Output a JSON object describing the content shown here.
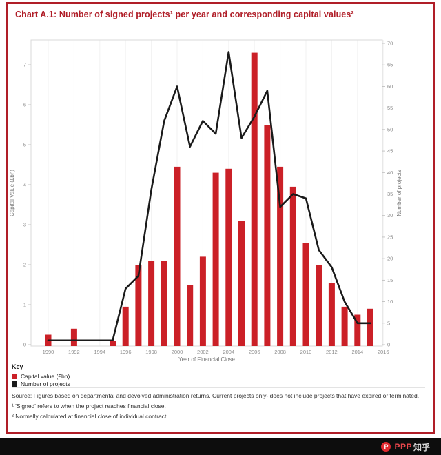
{
  "panel": {
    "title": "Chart A.1: Number of signed projects¹ per year and corresponding capital values²",
    "title_color": "#b01e28",
    "border_color": "#b01e28"
  },
  "key": {
    "heading": "Key",
    "items": [
      {
        "label": "Capital value (£bn)",
        "color": "#cb2027"
      },
      {
        "label": "Number of projects",
        "color": "#1a1a1a"
      }
    ]
  },
  "notes": {
    "source": "Source: Figures based on departmental and devolved administration returns. Current projects only- does not include projects that have expired or terminated.",
    "footnote1": "¹ 'Signed' refers to when the project reaches financial close.",
    "footnote2": "² Normally calculated at financial close of individual contract."
  },
  "watermark": {
    "logo_letter": "P",
    "brand": "PPP",
    "suffix": "知乎"
  },
  "chart_data": {
    "type": "combo-bar-line",
    "x": [
      1990,
      1991,
      1992,
      1993,
      1994,
      1995,
      1996,
      1997,
      1998,
      1999,
      2000,
      2001,
      2002,
      2003,
      2004,
      2005,
      2006,
      2007,
      2008,
      2009,
      2010,
      2011,
      2012,
      2013,
      2014,
      2015
    ],
    "series": [
      {
        "name": "Capital value (£bn)",
        "type": "bar",
        "axis": "left",
        "color": "#cb2027",
        "values": [
          0.25,
          0,
          0.4,
          0,
          0,
          0.1,
          0.95,
          2.0,
          2.1,
          2.1,
          4.45,
          1.5,
          2.2,
          4.3,
          4.4,
          3.1,
          7.3,
          5.5,
          4.45,
          3.95,
          2.55,
          2.0,
          1.55,
          0.95,
          0.75,
          0.9
        ]
      },
      {
        "name": "Number of projects",
        "type": "line",
        "axis": "right",
        "color": "#1a1a1a",
        "values": [
          1,
          1,
          1,
          1,
          1,
          1,
          13,
          16,
          36,
          52,
          60,
          46,
          52,
          49,
          68,
          48,
          53,
          59,
          32,
          35,
          34,
          22,
          18,
          10,
          5,
          5
        ]
      }
    ],
    "xlabel": "Year of Financial Close",
    "ylabel_left": "Capital Value (£bn)",
    "ylabel_right": "Number of projects",
    "ylim_left": [
      0,
      7
    ],
    "ylim_right": [
      0,
      70
    ],
    "x_tick_labels": [
      "1990",
      "1992",
      "1994",
      "1996",
      "1998",
      "2000",
      "2002",
      "2004",
      "2006",
      "2008",
      "2010",
      "2012",
      "2014",
      "2016"
    ],
    "y_ticks_left": [
      0,
      1,
      2,
      3,
      4,
      5,
      6,
      7
    ],
    "y_ticks_right": [
      0,
      5,
      10,
      15,
      20,
      25,
      30,
      35,
      40,
      45,
      50,
      55,
      60,
      65,
      70
    ],
    "grid": "faint vertical gridlines at labeled years",
    "legend_position": "below-left"
  }
}
